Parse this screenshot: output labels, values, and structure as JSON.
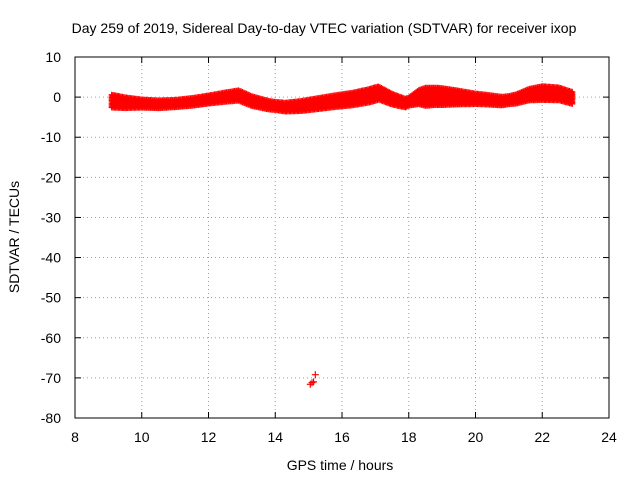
{
  "chart_data": {
    "type": "scatter",
    "title": "Day 259 of 2019, Sidereal Day-to-day VTEC variation (SDTVAR) for receiver ixop",
    "xlabel": "GPS time / hours",
    "ylabel": "SDTVAR / TECUs",
    "xlim": [
      8,
      24
    ],
    "ylim": [
      -80,
      10
    ],
    "xticks": [
      8,
      10,
      12,
      14,
      16,
      18,
      20,
      22,
      24
    ],
    "yticks": [
      10,
      0,
      -10,
      -20,
      -30,
      -40,
      -50,
      -60,
      -70,
      -80
    ],
    "grid": true,
    "marker": "+",
    "color": "#ff0000",
    "series": [
      {
        "name": "SDTVAR",
        "band": {
          "x_start": 9.1,
          "x_end": 22.9,
          "x_step": 0.04,
          "center": [
            [
              9.1,
              -1.0
            ],
            [
              9.5,
              -1.4
            ],
            [
              10.0,
              -1.6
            ],
            [
              10.5,
              -1.8
            ],
            [
              11.0,
              -1.6
            ],
            [
              11.5,
              -1.2
            ],
            [
              12.0,
              -0.6
            ],
            [
              12.5,
              0.0
            ],
            [
              12.9,
              0.4
            ],
            [
              13.3,
              -1.0
            ],
            [
              13.8,
              -2.0
            ],
            [
              14.3,
              -2.5
            ],
            [
              14.8,
              -2.2
            ],
            [
              15.3,
              -1.6
            ],
            [
              15.8,
              -1.0
            ],
            [
              16.3,
              -0.5
            ],
            [
              16.8,
              0.3
            ],
            [
              17.1,
              1.0
            ],
            [
              17.5,
              -0.5
            ],
            [
              17.9,
              -1.5
            ],
            [
              18.3,
              0.0
            ],
            [
              18.8,
              0.2
            ],
            [
              19.3,
              0.0
            ],
            [
              19.8,
              -0.3
            ],
            [
              20.3,
              -0.6
            ],
            [
              20.8,
              -1.0
            ],
            [
              21.2,
              -0.5
            ],
            [
              21.6,
              0.6
            ],
            [
              22.0,
              1.0
            ],
            [
              22.5,
              0.8
            ],
            [
              22.9,
              -0.2
            ]
          ],
          "spread": [
            [
              9.1,
              3.2
            ],
            [
              10.0,
              2.0
            ],
            [
              11.0,
              1.8
            ],
            [
              12.0,
              2.0
            ],
            [
              13.0,
              2.6
            ],
            [
              14.0,
              2.0
            ],
            [
              15.0,
              2.6
            ],
            [
              16.0,
              3.0
            ],
            [
              17.0,
              3.4
            ],
            [
              18.0,
              2.0
            ],
            [
              18.5,
              4.5
            ],
            [
              19.0,
              4.2
            ],
            [
              20.0,
              2.6
            ],
            [
              21.0,
              2.0
            ],
            [
              22.0,
              3.4
            ],
            [
              22.9,
              3.0
            ]
          ]
        },
        "outliers": [
          {
            "x": 15.2,
            "y": -69.2
          },
          {
            "x": 15.1,
            "y": -71.2
          },
          {
            "x": 15.05,
            "y": -71.6
          },
          {
            "x": 15.15,
            "y": -71.0
          }
        ]
      }
    ]
  }
}
